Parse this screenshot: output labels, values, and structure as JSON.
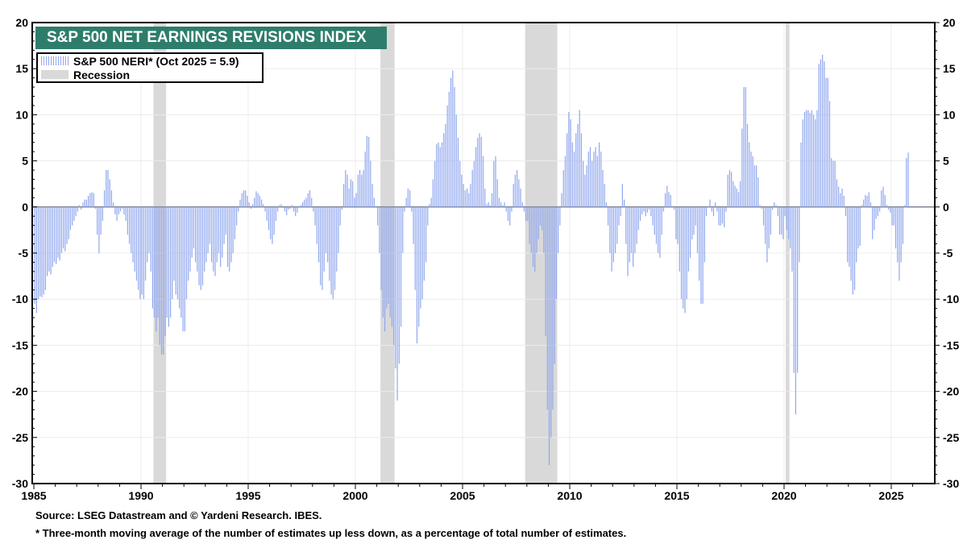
{
  "chart_data": {
    "type": "bar",
    "title": "S&P 500 NET EARNINGS REVISIONS INDEX",
    "series_name": "S&P 500 NERI* (Oct 2025 = 5.9)",
    "recession_label": "Recession",
    "frequency": "monthly",
    "start": "1985-01",
    "ylim": [
      -30,
      20
    ],
    "xlim": [
      1985,
      2027
    ],
    "y_ticks": [
      "20",
      "15",
      "10",
      "5",
      "0",
      "-5",
      "-10",
      "-15",
      "-20",
      "-25",
      "-30"
    ],
    "x_ticks": [
      "1985",
      "1990",
      "1995",
      "2000",
      "2005",
      "2010",
      "2015",
      "2020",
      "2025"
    ],
    "recessions": [
      [
        1990.58,
        1991.17
      ],
      [
        2001.17,
        2001.83
      ],
      [
        2007.92,
        2009.42
      ],
      [
        2020.08,
        2020.25
      ]
    ],
    "colors": {
      "bars": "#8fa6ee",
      "recession": "#d9d9d9",
      "title_bg": "#2e7d6b"
    },
    "values": [
      -10.5,
      -11.5,
      -10,
      -9.7,
      -9.8,
      -9.5,
      -9,
      -7.5,
      -7,
      -7.3,
      -6.5,
      -6,
      -6.2,
      -5.5,
      -5.8,
      -5,
      -4.5,
      -4.8,
      -4,
      -3.5,
      -2.5,
      -2,
      -1.5,
      -1,
      -0.5,
      0.2,
      -0.3,
      0.5,
      0.8,
      0.8,
      1.2,
      1.5,
      1.6,
      1.5,
      -0.2,
      -3,
      -5,
      -3,
      -1.5,
      1.8,
      4,
      4,
      3,
      1.8,
      0.5,
      -0.8,
      -1.5,
      -0.8,
      -0.5,
      -0.2,
      -0.8,
      -1.5,
      -3,
      -4,
      -5,
      -6,
      -7,
      -8,
      -9,
      -10,
      -9.5,
      -10,
      -8,
      -6,
      -5,
      -7,
      -11,
      -12,
      -13.5,
      -12,
      -15,
      -16,
      -16,
      -14,
      -12,
      -13,
      -12,
      -10,
      -8,
      -9.5,
      -10,
      -11,
      -12,
      -13.5,
      -13.5,
      -10,
      -8,
      -7,
      -5.5,
      -4.5,
      -6,
      -7,
      -8.5,
      -9,
      -8.5,
      -7,
      -6,
      -5,
      -4,
      -6,
      -7,
      -7.5,
      -6,
      -5,
      -6.5,
      -5.5,
      -4,
      -3,
      -6.5,
      -7,
      -6,
      -5,
      -3.5,
      -2,
      -0.5,
      0.8,
      1.5,
      1.8,
      1.8,
      1.2,
      0.5,
      -0.2,
      0.3,
      1,
      1.7,
      1.5,
      1.2,
      0.8,
      0.3,
      -0.5,
      -1.5,
      -2.5,
      -3.5,
      -4,
      -3,
      -1.5,
      -0.5,
      0.2,
      0.3,
      -0.1,
      -0.5,
      -0.9,
      -0.3,
      -0.2,
      0.2,
      -0.5,
      -1,
      -0.6,
      0,
      0.2,
      0.5,
      0.8,
      1,
      1.5,
      1.8,
      1,
      -0.5,
      -2,
      -4,
      -6,
      -8.5,
      -9,
      -7,
      -5,
      -6,
      -8,
      -9.5,
      -10,
      -9,
      -7,
      -5,
      -2,
      -0.3,
      2.5,
      4,
      3.5,
      2,
      3,
      2.8,
      1,
      1.5,
      3.5,
      4,
      3.5,
      4,
      6,
      7.7,
      7.6,
      5,
      2.5,
      1,
      0,
      -2,
      -5,
      -9,
      -12,
      -13.5,
      -11,
      -10.5,
      -12,
      -13,
      -15,
      -17.5,
      -21,
      -17,
      -13,
      -5,
      -0.5,
      1,
      2,
      1.8,
      -0.5,
      -4,
      -9,
      -14.8,
      -13,
      -11,
      -10,
      -8,
      -6,
      -2,
      0.3,
      1,
      3,
      5,
      6.8,
      7,
      6.5,
      7,
      8,
      9,
      11,
      12.5,
      14,
      14.8,
      13,
      10,
      7.5,
      5,
      3.5,
      2.5,
      1.8,
      2,
      1.5,
      2.5,
      4,
      5,
      6.5,
      7.5,
      8,
      7.6,
      5.5,
      2,
      0.3,
      0.5,
      0.2,
      1.5,
      5,
      5.5,
      3,
      1,
      0.5,
      0.2,
      0.5,
      -0.5,
      -1.5,
      -2,
      -0.5,
      2.5,
      3.5,
      4,
      3,
      2,
      0.5,
      -0.5,
      -1.5,
      -1.5,
      -4,
      -5,
      -6.5,
      -7,
      -5,
      -3.5,
      -2,
      -2.5,
      -5,
      -14,
      -22,
      -28,
      -25,
      -22,
      -17,
      -10,
      -5,
      -2,
      1.5,
      4,
      5.5,
      8,
      10.3,
      9.5,
      7,
      6,
      8,
      9,
      10.5,
      8,
      5,
      3.5,
      4.5,
      6,
      6.5,
      5,
      6,
      6.5,
      5.5,
      7,
      6,
      4,
      2.5,
      0.5,
      -2,
      -5,
      -7,
      -6,
      -5,
      -4,
      -2,
      -1,
      2.5,
      0.8,
      -4,
      -7.5,
      -6,
      -5,
      -6.5,
      -5,
      -4,
      -2.5,
      -1.5,
      -0.8,
      -0.5,
      -1,
      -0.6,
      -0.3,
      -1,
      -2,
      -3,
      -4,
      -5,
      -5.5,
      -3,
      -0.5,
      1.5,
      2.3,
      1.6,
      1.3,
      0,
      -0.3,
      -3.5,
      -4,
      -7,
      -10,
      -11,
      -11.5,
      -10,
      -7,
      -5.5,
      -3.5,
      -3,
      -2,
      -5,
      -8,
      -10.5,
      -10.5,
      -6,
      -1,
      0,
      0.8,
      -0.5,
      -1,
      0.5,
      -0.5,
      -2,
      -2,
      -1.8,
      -2.2,
      -0.5,
      3.5,
      4,
      3.8,
      2.8,
      2.3,
      2,
      1.6,
      2.8,
      8.5,
      13,
      13,
      9,
      7,
      6,
      5.5,
      4.5,
      4.5,
      3.2,
      0.2,
      -0.2,
      -2,
      -4,
      -6,
      -4.5,
      -3,
      -0.3,
      0.5,
      0.2,
      -1,
      -3,
      -3,
      -3.5,
      -1,
      -2.5,
      -3.5,
      -4.5,
      -7,
      -18,
      -22.5,
      -18,
      -6,
      7,
      9.5,
      10.3,
      10.5,
      10.5,
      10.2,
      10.5,
      10,
      9.5,
      10.5,
      15.5,
      16,
      16.5,
      15.8,
      14,
      14,
      11.5,
      5.3,
      5,
      5,
      3,
      2.2,
      1.5,
      2,
      1.2,
      -1,
      -6,
      -6.5,
      -8,
      -9.5,
      -9,
      -6,
      -4.5,
      -4.2,
      0.2,
      0.8,
      1.3,
      1.2,
      1.6,
      0.5,
      -3.5,
      -2.5,
      -1.3,
      -1,
      -0.5,
      1.8,
      2.2,
      1.3,
      0.2,
      -0.3,
      -0.6,
      -2,
      -2,
      -4.5,
      -6,
      -8,
      -6,
      -4,
      0.2,
      5.3,
      5.9
    ]
  },
  "footer": {
    "source": "Source: LSEG Datastream and © Yardeni Research. IBES.",
    "note": "* Three-month moving average of the number of estimates up less down, as a percentage of total number of estimates."
  }
}
